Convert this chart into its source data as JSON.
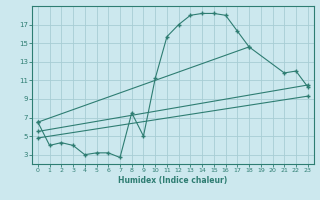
{
  "xlabel": "Humidex (Indice chaleur)",
  "bg_color": "#cce8ee",
  "grid_color": "#a8cdd4",
  "line_color": "#2e7d72",
  "xlim": [
    -0.5,
    23.5
  ],
  "ylim": [
    2,
    19
  ],
  "xticks": [
    0,
    1,
    2,
    3,
    4,
    5,
    6,
    7,
    8,
    9,
    10,
    11,
    12,
    13,
    14,
    15,
    16,
    17,
    18,
    19,
    20,
    21,
    22,
    23
  ],
  "yticks": [
    3,
    5,
    7,
    9,
    11,
    13,
    15,
    17
  ],
  "curve1_x": [
    0,
    1,
    2,
    3,
    4,
    5,
    6,
    7,
    8,
    9,
    10,
    11,
    12,
    13,
    14,
    15,
    16,
    17,
    18
  ],
  "curve1_y": [
    6.5,
    4.0,
    4.3,
    4.0,
    3.0,
    3.2,
    3.2,
    2.7,
    7.5,
    5.0,
    11.2,
    15.7,
    17.0,
    18.0,
    18.2,
    18.2,
    18.0,
    16.3,
    14.6
  ],
  "curve2_x": [
    0,
    18,
    21,
    22,
    23
  ],
  "curve2_y": [
    6.5,
    14.6,
    11.8,
    12.0,
    10.3
  ],
  "curve3_x": [
    0,
    23
  ],
  "curve3_y": [
    5.5,
    10.5
  ],
  "curve4_x": [
    0,
    23
  ],
  "curve4_y": [
    4.8,
    9.3
  ]
}
